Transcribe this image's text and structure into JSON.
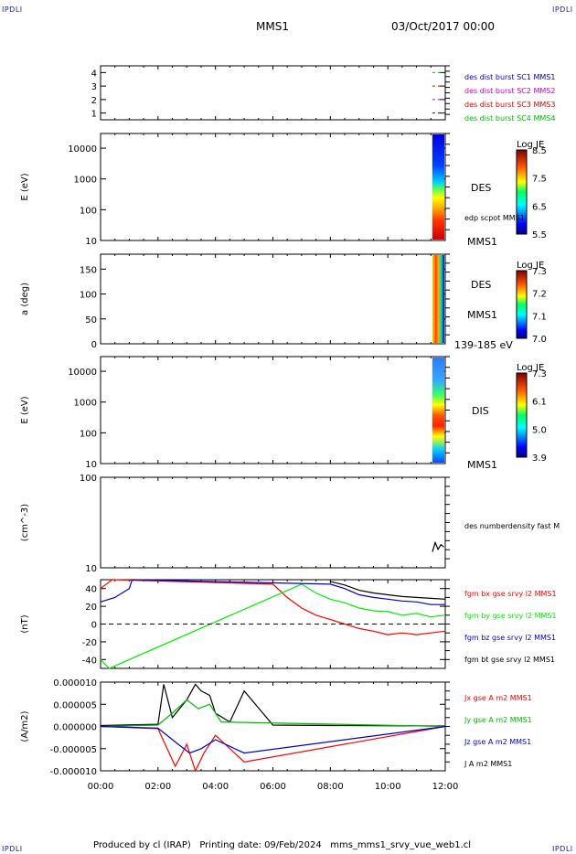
{
  "header": {
    "corner_tl": "IPDLI",
    "corner_tr": "IPDLI",
    "corner_bl": "IPDLI",
    "corner_br": "IPDLI",
    "title": "MMS1",
    "datetime": "03/Oct/2017 00:00"
  },
  "footer": {
    "text": "Produced by cl (IRAP)   Printing date: 09/Feb/2024   mms_mms1_srvy_vue_web1.cl"
  },
  "colors": {
    "mms1": "#0000cc",
    "mms2": "#cc00cc",
    "mms3": "#dd0000",
    "mms4": "#00bb00",
    "bx": "#ff0000",
    "by": "#00ee00",
    "bz": "#0000cc",
    "bt": "#000000"
  },
  "chart_data": [
    {
      "type": "scatter",
      "panel": "burst",
      "ylim": [
        0.5,
        4.5
      ],
      "yticks": [
        "1",
        "2",
        "3",
        "4"
      ],
      "legend": [
        {
          "label": "des dist burst SC1 MMS1",
          "color": "#0000cc"
        },
        {
          "label": "des dist burst SC2 MMS2",
          "color": "#cc00cc"
        },
        {
          "label": "des dist burst SC3 MMS3",
          "color": "#dd0000"
        },
        {
          "label": "des dist burst SC4 MMS4",
          "color": "#00bb00"
        }
      ],
      "markers_start_hour": 11.55
    },
    {
      "type": "heatmap",
      "panel": "des-energy",
      "ylabel": "E (eV)",
      "log_y": true,
      "yticks": [
        "10000",
        "1000",
        "100",
        "10"
      ],
      "ylim": [
        10,
        30000
      ],
      "label": "DES",
      "sublabel": "edp scpot MMS1",
      "bottom_label": "MMS1",
      "colorbar": {
        "title": "Log JE",
        "ticks": [
          "8.5",
          "7.5",
          "6.5",
          "5.5"
        ],
        "range": [
          5.5,
          8.5
        ]
      },
      "data_start_hour": 11.55
    },
    {
      "type": "heatmap",
      "panel": "des-pitch",
      "ylabel": "a (deg)",
      "yticks": [
        "150",
        "100",
        "50",
        "0"
      ],
      "ylim": [
        0,
        180
      ],
      "label": "DES",
      "sublabel": "MMS1",
      "bottom_label": "139-185 eV",
      "colorbar": {
        "title": "Log JE",
        "ticks": [
          "7.3",
          "7.2",
          "7.1",
          "7.0"
        ],
        "range": [
          7.0,
          7.3
        ]
      },
      "data_start_hour": 11.55
    },
    {
      "type": "heatmap",
      "panel": "dis-energy",
      "ylabel": "E (eV)",
      "log_y": true,
      "yticks": [
        "10000",
        "1000",
        "100",
        "10"
      ],
      "ylim": [
        10,
        30000
      ],
      "label": "DIS",
      "bottom_label": "MMS1",
      "colorbar": {
        "title": "Log JE",
        "ticks": [
          "7.3",
          "6.1",
          "5.0",
          "3.9"
        ],
        "range": [
          3.9,
          7.3
        ]
      },
      "data_start_hour": 11.55
    },
    {
      "type": "line",
      "panel": "density",
      "ylabel": "(cm^-3)",
      "log_y": true,
      "yticks": [
        "100",
        "10"
      ],
      "ylim": [
        10,
        100
      ],
      "legend": [
        {
          "label": "des numberdensity fast M",
          "color": "#000000"
        }
      ],
      "series": [
        {
          "name": "des numberdensity fast M",
          "x": [
            11.55,
            11.65,
            11.75,
            11.85,
            11.95
          ],
          "y": [
            15,
            19,
            16,
            18,
            17
          ]
        }
      ]
    },
    {
      "type": "line",
      "panel": "fgm",
      "ylabel": "(nT)",
      "yticks": [
        "40",
        "20",
        "0",
        "-20",
        "-40"
      ],
      "ylim": [
        -50,
        50
      ],
      "legend": [
        {
          "label": "fgm bx gse srvy l2 MMS1",
          "color": "#ff0000"
        },
        {
          "label": "fgm by gse srvy l2 MMS1",
          "color": "#00ee00"
        },
        {
          "label": "fgm bz gse srvy l2 MMS1",
          "color": "#0000cc"
        },
        {
          "label": "fgm bt gse srvy l2 MMS1",
          "color": "#000000"
        }
      ],
      "series": [
        {
          "name": "fgm bx gse srvy l2 MMS1",
          "x": [
            0,
            0.4,
            6.0,
            6.5,
            7.0,
            7.5,
            8.0,
            8.5,
            9.0,
            9.5,
            10.0,
            10.5,
            11.0,
            11.5,
            12.0
          ],
          "y": [
            40,
            50,
            45,
            30,
            18,
            10,
            5,
            0,
            -5,
            -8,
            -12,
            -10,
            -12,
            -10,
            -8
          ]
        },
        {
          "name": "fgm by gse srvy l2 MMS1",
          "x": [
            0,
            0.3,
            7.0,
            7.5,
            8.0,
            8.5,
            9.0,
            9.5,
            10.0,
            10.5,
            11.0,
            11.5,
            12.0
          ],
          "y": [
            -40,
            -50,
            45,
            35,
            28,
            24,
            18,
            15,
            14,
            10,
            12,
            8,
            10
          ]
        },
        {
          "name": "fgm bz gse srvy l2 MMS1",
          "x": [
            0,
            0.5,
            1.0,
            1.1,
            8.0,
            8.5,
            9.0,
            9.5,
            10.0,
            10.5,
            11.0,
            11.5,
            12.0
          ],
          "y": [
            25,
            30,
            40,
            50,
            45,
            40,
            33,
            30,
            28,
            26,
            25,
            22,
            22
          ]
        },
        {
          "name": "fgm bt gse srvy l2 MMS1",
          "x": [
            8.0,
            8.5,
            9.0,
            9.5,
            10.0,
            10.5,
            11.0,
            11.5,
            12.0
          ],
          "y": [
            48,
            44,
            38,
            35,
            33,
            31,
            30,
            29,
            28
          ]
        }
      ],
      "dashed_zero": true
    },
    {
      "type": "line",
      "panel": "current",
      "ylabel": "(A/m2)",
      "yticks": [
        "0.000010",
        "0.000005",
        "0.000000",
        "-0.000005",
        "-0.000010"
      ],
      "ylim": [
        -1e-05,
        1e-05
      ],
      "legend": [
        {
          "label": "Jx gse A m2 MMS1",
          "color": "#ff0000"
        },
        {
          "label": "Jy gse A m2 MMS1",
          "color": "#00bb00"
        },
        {
          "label": "Jz gse A m2 MMS1",
          "color": "#0000cc"
        },
        {
          "label": "J A m2 MMS1",
          "color": "#000000"
        }
      ],
      "series": [
        {
          "name": "J A m2 MMS1",
          "x": [
            0,
            2.0,
            2.2,
            2.5,
            3.0,
            3.3,
            3.5,
            3.8,
            4.0,
            4.5,
            5.0,
            6.0,
            8.0,
            12.0
          ],
          "y": [
            2e-07,
            5e-07,
            9.5e-06,
            2e-06,
            6e-06,
            9.5e-06,
            8e-06,
            7e-06,
            3e-06,
            1e-06,
            8e-06,
            3e-07,
            2e-07,
            1e-07
          ]
        },
        {
          "name": "Jx gse A m2 MMS1",
          "x": [
            0,
            2.0,
            2.6,
            3.0,
            3.3,
            3.6,
            4.0,
            5.0,
            12.0
          ],
          "y": [
            0,
            -5e-07,
            -9e-06,
            -4e-06,
            -1e-05,
            -6e-06,
            -2e-06,
            -8e-06,
            0
          ]
        },
        {
          "name": "Jy gse A m2 MMS1",
          "x": [
            0,
            2.0,
            2.5,
            3.0,
            3.4,
            3.8,
            4.2,
            12.0
          ],
          "y": [
            0,
            3e-07,
            3e-06,
            6e-06,
            4e-06,
            5e-06,
            1e-06,
            0
          ]
        },
        {
          "name": "Jz gse A m2 MMS1",
          "x": [
            0,
            2.0,
            2.7,
            3.1,
            3.5,
            4.0,
            5.0,
            12.0
          ],
          "y": [
            0,
            -4e-07,
            -4e-06,
            -6e-06,
            -5e-06,
            -3e-06,
            -6e-06,
            0
          ]
        }
      ]
    }
  ],
  "x_axis": {
    "ticks": [
      "00:00",
      "02:00",
      "04:00",
      "06:00",
      "08:00",
      "10:00",
      "12:00"
    ],
    "range_hours": [
      0,
      12
    ]
  }
}
